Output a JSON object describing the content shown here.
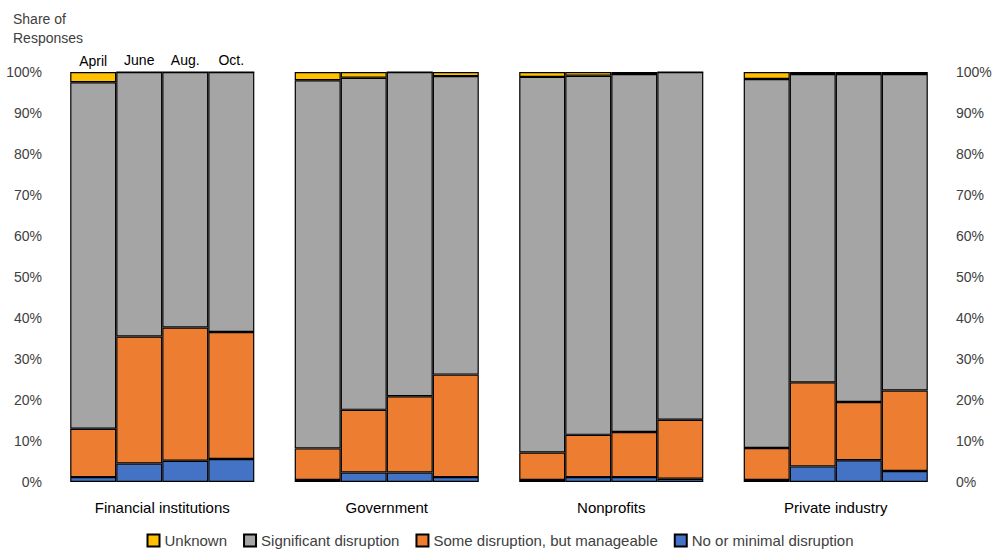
{
  "chart_data": {
    "type": "bar",
    "stacked": true,
    "grid": false,
    "legend": "bottom",
    "y_label": "Share of Responses",
    "categories": [
      "Financial institutions",
      "Government",
      "Nonprofits",
      "Private industry"
    ],
    "periods": [
      "April",
      "June",
      "Aug.",
      "Oct."
    ],
    "ylim": [
      0,
      100
    ],
    "yticks": [
      {
        "value": 0,
        "label": "0%"
      },
      {
        "value": 10,
        "label": "10%"
      },
      {
        "value": 20,
        "label": "20%"
      },
      {
        "value": 30,
        "label": "30%"
      },
      {
        "value": 40,
        "label": "40%"
      },
      {
        "value": 50,
        "label": "50%"
      },
      {
        "value": 60,
        "label": "60%"
      },
      {
        "value": 70,
        "label": "70%"
      },
      {
        "value": 80,
        "label": "80%"
      },
      {
        "value": 90,
        "label": "90%"
      },
      {
        "value": 100,
        "label": "100%"
      }
    ],
    "series": [
      {
        "name": "Unknown",
        "color": "#ffc000",
        "values": [
          [
            2.5,
            0,
            0,
            0
          ],
          [
            2,
            1.4,
            0,
            1
          ],
          [
            1.2,
            0.9,
            0.5,
            0
          ],
          [
            1.7,
            0.5,
            0.5,
            0.5
          ]
        ]
      },
      {
        "name": "Significant disruption",
        "color": "#a5a5a5",
        "values": [
          [
            84.5,
            64.5,
            62.3,
            63.4
          ],
          [
            89.8,
            81,
            79.1,
            72.8
          ],
          [
            91.6,
            87.6,
            87.3,
            84.8
          ],
          [
            90,
            75.2,
            80,
            77.2
          ]
        ]
      },
      {
        "name": "Some disruption, but manageable",
        "color": "#ed7d31",
        "values": [
          [
            11.8,
            31,
            32.5,
            31
          ],
          [
            7.7,
            15.3,
            18.6,
            25
          ],
          [
            6.7,
            10.3,
            11,
            14.4
          ],
          [
            7.8,
            20.5,
            14.2,
            19.6
          ]
        ]
      },
      {
        "name": "No or minimal disruption",
        "color": "#4472c4",
        "values": [
          [
            1.2,
            4.5,
            5.2,
            5.6
          ],
          [
            0.5,
            2.3,
            2.3,
            1.2
          ],
          [
            0.5,
            1.2,
            1.2,
            0.8
          ],
          [
            0.5,
            3.8,
            5.3,
            2.7
          ]
        ]
      }
    ]
  }
}
